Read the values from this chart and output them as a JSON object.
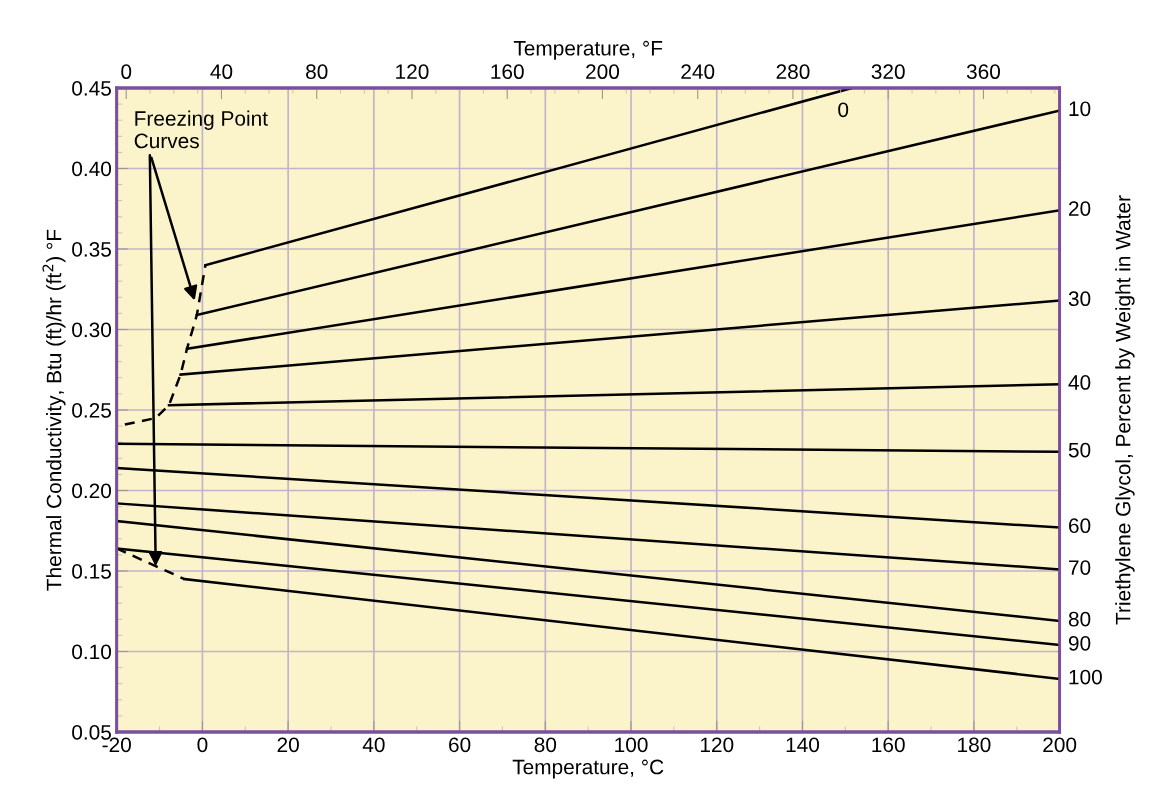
{
  "chart_data": {
    "type": "line",
    "xlabel": "Temperature, °C",
    "ylabel": "Thermal Conductivity, Btu (ft)/hr (ft$^{2}$) °F",
    "y2label": "Triethylene Glycol, Percent by Weight in Water",
    "x2label": "Temperature, °F",
    "xlim": [
      -20,
      200
    ],
    "xticks": [
      -20,
      0,
      20,
      40,
      60,
      80,
      100,
      120,
      140,
      160,
      180,
      200
    ],
    "x2lim": [
      -4,
      392
    ],
    "x2ticks": [
      0,
      40,
      80,
      120,
      160,
      200,
      240,
      280,
      320,
      360
    ],
    "ylim": [
      0.05,
      0.45
    ],
    "yticks": [
      0.05,
      {
        "value": 0.1,
        "label": "0.10"
      },
      0.15,
      {
        "value": 0.2,
        "label": "0.20"
      },
      0.25,
      {
        "value": 0.3,
        "label": "0.30"
      },
      0.35,
      {
        "value": 0.4,
        "label": "0.40"
      },
      0.45
    ],
    "grid": true,
    "legend": false,
    "marker": "none",
    "series": [
      {
        "name": "0",
        "color": "#000000",
        "x": [
          0.7,
          151.5
        ],
        "values": [
          0.34,
          0.45
        ]
      },
      {
        "name": "10",
        "color": "#000000",
        "x": [
          -1.3,
          200
        ],
        "values": [
          0.309,
          0.436
        ]
      },
      {
        "name": "20",
        "color": "#000000",
        "x": [
          -3.6,
          200
        ],
        "values": [
          0.288,
          0.374
        ]
      },
      {
        "name": "30",
        "color": "#000000",
        "x": [
          -5.1,
          200
        ],
        "values": [
          0.272,
          0.318
        ]
      },
      {
        "name": "40",
        "color": "#000000",
        "x": [
          -7.8,
          200
        ],
        "values": [
          0.253,
          0.266
        ]
      },
      {
        "name": "50",
        "color": "#000000",
        "x": [
          -20,
          200
        ],
        "values": [
          0.229,
          0.224
        ]
      },
      {
        "name": "60",
        "color": "#000000",
        "x": [
          -20,
          200
        ],
        "values": [
          0.214,
          0.177
        ]
      },
      {
        "name": "70",
        "color": "#000000",
        "x": [
          -20,
          200
        ],
        "values": [
          0.192,
          0.151
        ]
      },
      {
        "name": "80",
        "color": "#000000",
        "x": [
          -20,
          200
        ],
        "values": [
          0.181,
          0.119
        ]
      },
      {
        "name": "90",
        "color": "#000000",
        "x": [
          -20,
          200
        ],
        "values": [
          0.164,
          0.104
        ]
      },
      {
        "name": "100",
        "color": "#000000",
        "x": [
          -4.2,
          200
        ],
        "values": [
          0.145,
          0.083
        ]
      },
      {
        "color": "#000000",
        "line_style": "dashed",
        "x": [
          -18.1,
          -10.9,
          -7.8,
          -5.1,
          -3.6,
          -1.3,
          0.7
        ],
        "values": [
          0.241,
          0.245,
          0.253,
          0.272,
          0.288,
          0.309,
          0.34
        ]
      },
      {
        "color": "#000000",
        "line_style": "dashed",
        "x": [
          -20,
          -10.9,
          -4.2
        ],
        "values": [
          0.164,
          0.153,
          0.145
        ]
      }
    ],
    "annotations": [
      {
        "text": "Freezing Point\nCurves",
        "x": -1.8,
        "y": 0.318
      }
    ]
  }
}
